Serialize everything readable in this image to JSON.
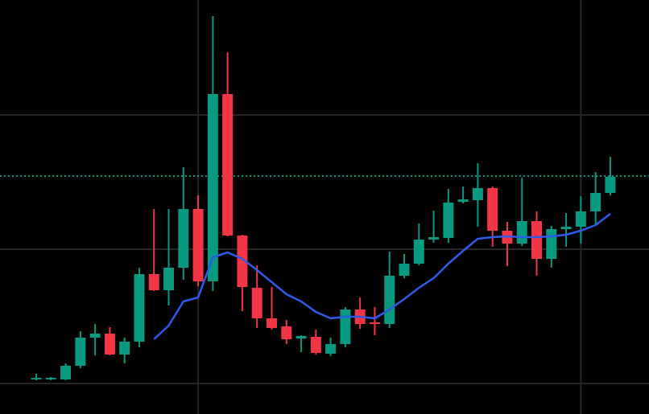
{
  "chart_data": {
    "type": "candlestick",
    "up_color": "#089981",
    "down_color": "#f23645",
    "background": "#000000",
    "grid_color": "#262626",
    "ylim": [
      0,
      515
    ],
    "hgrid": [
      38,
      205,
      372
    ],
    "vgrid_index": [
      11,
      37
    ],
    "open": [
      43,
      43,
      43,
      60,
      95,
      100,
      74,
      90,
      174,
      154,
      182,
      255,
      165,
      398,
      222,
      157,
      119,
      109,
      94,
      96,
      75,
      87,
      130,
      114,
      112,
      172,
      187,
      217,
      219,
      264,
      266,
      281,
      228,
      212,
      240,
      193,
      230,
      233,
      252,
      275
    ],
    "high": [
      50,
      46,
      63,
      103,
      112,
      108,
      95,
      182,
      255,
      255,
      307,
      272,
      495,
      450,
      223,
      185,
      158,
      117,
      98,
      105,
      95,
      133,
      145,
      133,
      202,
      199,
      237,
      253,
      280,
      283,
      312,
      283,
      239,
      294,
      252,
      234,
      250,
      271,
      301,
      320
    ],
    "low": [
      42,
      42,
      42,
      57,
      73,
      73,
      63,
      83,
      153,
      135,
      167,
      159,
      153,
      221,
      128,
      107,
      105,
      87,
      77,
      74,
      72,
      83,
      106,
      98,
      107,
      169,
      185,
      213,
      213,
      262,
      233,
      208,
      184,
      209,
      172,
      182,
      208,
      212,
      234,
      272
    ],
    "close": [
      45,
      45,
      60,
      95,
      100,
      74,
      90,
      174,
      154,
      182,
      255,
      165,
      398,
      222,
      158,
      119,
      107,
      93,
      97,
      76,
      87,
      130,
      112,
      112,
      172,
      187,
      217,
      220,
      263,
      267,
      281,
      228,
      212,
      240,
      193,
      230,
      233,
      252,
      275,
      295
    ],
    "ma": {
      "color": "#2f5bea",
      "values": [
        null,
        null,
        null,
        null,
        null,
        null,
        null,
        null,
        93,
        110,
        140,
        145,
        195,
        201,
        193,
        179,
        164,
        149,
        140,
        127,
        119,
        121,
        121,
        119,
        130,
        143,
        157,
        169,
        187,
        203,
        218,
        220,
        221,
        220,
        220,
        221,
        223,
        228,
        235,
        249
      ]
    },
    "price_line": {
      "value": 296,
      "color": "#089981"
    }
  }
}
